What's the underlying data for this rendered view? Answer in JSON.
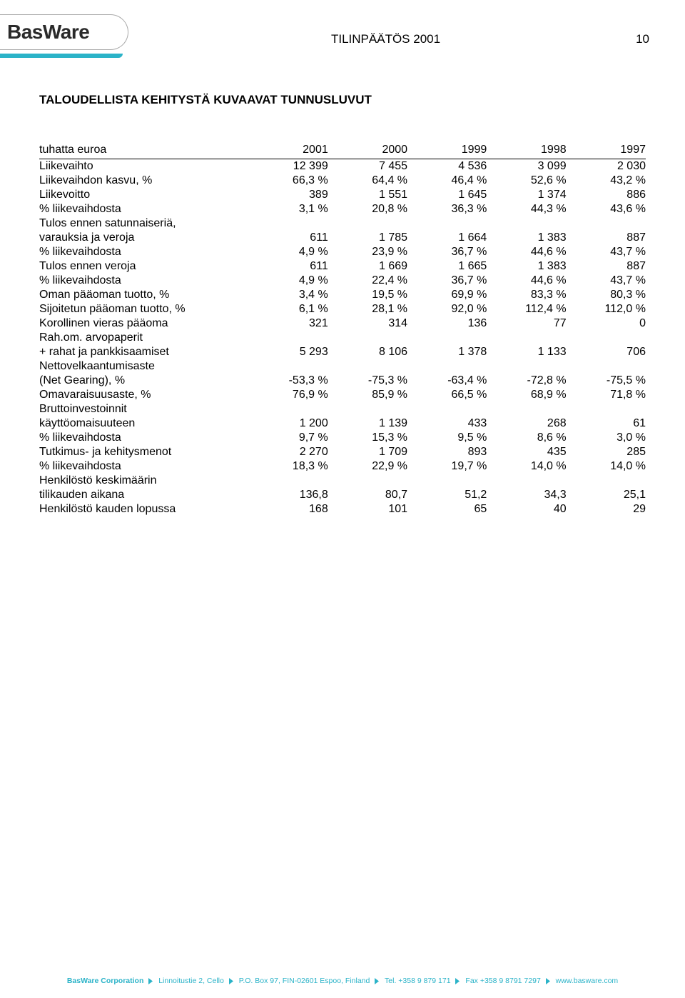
{
  "logo": "BasWare",
  "header_title": "TILINPÄÄTÖS 2001",
  "page_number": "10",
  "section_title": "TALOUDELLISTA KEHITYSTÄ KUVAAVAT TUNNUSLUVUT",
  "accent_color": "#2bb3c8",
  "text_color": "#000000",
  "table": {
    "unit_label": "tuhatta euroa",
    "years": [
      "2001",
      "2000",
      "1999",
      "1998",
      "1997"
    ],
    "rows": [
      {
        "label": "Liikevaihto",
        "vals": [
          "12 399",
          "7 455",
          "4 536",
          "3 099",
          "2 030"
        ]
      },
      {
        "label": "Liikevaihdon kasvu, %",
        "vals": [
          "66,3 %",
          "64,4 %",
          "46,4 %",
          "52,6 %",
          "43,2 %"
        ]
      },
      {
        "label": "Liikevoitto",
        "vals": [
          "389",
          "1 551",
          "1 645",
          "1 374",
          "886"
        ]
      },
      {
        "label": "% liikevaihdosta",
        "vals": [
          "3,1 %",
          "20,8 %",
          "36,3 %",
          "44,3 %",
          "43,6 %"
        ]
      },
      {
        "label": "Tulos ennen satunnaiseriä,",
        "vals": [
          "",
          "",
          "",
          "",
          ""
        ]
      },
      {
        "label": "varauksia ja veroja",
        "vals": [
          "611",
          "1 785",
          "1 664",
          "1 383",
          "887"
        ]
      },
      {
        "label": "% liikevaihdosta",
        "vals": [
          "4,9 %",
          "23,9 %",
          "36,7 %",
          "44,6 %",
          "43,7 %"
        ]
      },
      {
        "label": "Tulos ennen veroja",
        "vals": [
          "611",
          "1 669",
          "1 665",
          "1 383",
          "887"
        ]
      },
      {
        "label": "% liikevaihdosta",
        "vals": [
          "4,9 %",
          "22,4 %",
          "36,7 %",
          "44,6 %",
          "43,7 %"
        ]
      },
      {
        "label": "Oman pääoman tuotto, %",
        "vals": [
          "3,4 %",
          "19,5 %",
          "69,9 %",
          "83,3 %",
          "80,3 %"
        ]
      },
      {
        "label": "Sijoitetun pääoman tuotto, %",
        "vals": [
          "6,1 %",
          "28,1 %",
          "92,0 %",
          "112,4 %",
          "112,0 %"
        ]
      },
      {
        "label": "Korollinen vieras pääoma",
        "vals": [
          "321",
          "314",
          "136",
          "77",
          "0"
        ]
      },
      {
        "label": "Rah.om. arvopaperit",
        "vals": [
          "",
          "",
          "",
          "",
          ""
        ]
      },
      {
        "label": "+ rahat ja pankkisaamiset",
        "vals": [
          "5 293",
          "8 106",
          "1 378",
          "1 133",
          "706"
        ]
      },
      {
        "label": "Nettovelkaantumisaste",
        "vals": [
          "",
          "",
          "",
          "",
          ""
        ]
      },
      {
        "label": "(Net Gearing), %",
        "vals": [
          "-53,3 %",
          "-75,3 %",
          "-63,4 %",
          "-72,8 %",
          "-75,5 %"
        ]
      },
      {
        "label": "Omavaraisuusaste, %",
        "vals": [
          "76,9 %",
          "85,9 %",
          "66,5 %",
          "68,9 %",
          "71,8 %"
        ]
      },
      {
        "label": "Bruttoinvestoinnit",
        "vals": [
          "",
          "",
          "",
          "",
          ""
        ]
      },
      {
        "label": "käyttöomaisuuteen",
        "vals": [
          "1 200",
          "1 139",
          "433",
          "268",
          "61"
        ]
      },
      {
        "label": "% liikevaihdosta",
        "vals": [
          "9,7 %",
          "15,3 %",
          "9,5 %",
          "8,6 %",
          "3,0 %"
        ]
      },
      {
        "label": "Tutkimus- ja kehitysmenot",
        "vals": [
          "2 270",
          "1 709",
          "893",
          "435",
          "285"
        ]
      },
      {
        "label": "% liikevaihdosta",
        "vals": [
          "18,3 %",
          "22,9 %",
          "19,7 %",
          "14,0 %",
          "14,0 %"
        ]
      },
      {
        "label": "Henkilöstö keskimäärin",
        "vals": [
          "",
          "",
          "",
          "",
          ""
        ]
      },
      {
        "label": "tilikauden aikana",
        "vals": [
          "136,8",
          "80,7",
          "51,2",
          "34,3",
          "25,1"
        ]
      },
      {
        "label": "Henkilöstö kauden lopussa",
        "vals": [
          "168",
          "101",
          "65",
          "40",
          "29"
        ]
      }
    ]
  },
  "footer": {
    "parts": [
      "BasWare Corporation",
      "Linnoitustie 2, Cello",
      "P.O. Box 97, FIN-02601 Espoo, Finland",
      "Tel. +358 9 879 171",
      "Fax +358 9 8791 7297",
      "www.basware.com"
    ]
  }
}
